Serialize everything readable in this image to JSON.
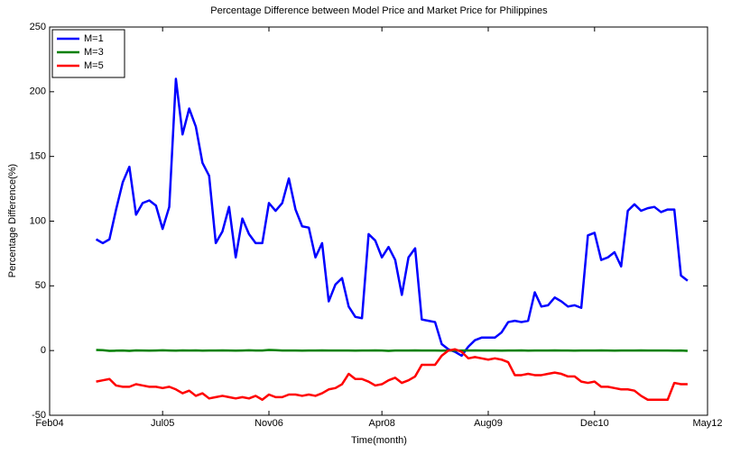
{
  "chart_data": {
    "type": "line",
    "title": "Percentage Difference between Model Price and Market Price for Philippines",
    "xlabel": "Time(month)",
    "ylabel": "Percentage Difference(%)",
    "x": [
      "2004-09",
      "2004-10",
      "2004-11",
      "2004-12",
      "2005-01",
      "2005-02",
      "2005-03",
      "2005-04",
      "2005-05",
      "2005-06",
      "2005-07",
      "2005-08",
      "2005-09",
      "2005-10",
      "2005-11",
      "2005-12",
      "2006-01",
      "2006-02",
      "2006-03",
      "2006-04",
      "2006-05",
      "2006-06",
      "2006-07",
      "2006-08",
      "2006-09",
      "2006-10",
      "2006-11",
      "2006-12",
      "2007-01",
      "2007-02",
      "2007-03",
      "2007-04",
      "2007-05",
      "2007-06",
      "2007-07",
      "2007-08",
      "2007-09",
      "2007-10",
      "2007-11",
      "2007-12",
      "2008-01",
      "2008-02",
      "2008-03",
      "2008-04",
      "2008-05",
      "2008-06",
      "2008-07",
      "2008-08",
      "2008-09",
      "2008-10",
      "2008-11",
      "2008-12",
      "2009-01",
      "2009-02",
      "2009-03",
      "2009-04",
      "2009-05",
      "2009-06",
      "2009-07",
      "2009-08",
      "2009-09",
      "2009-10",
      "2009-11",
      "2009-12",
      "2010-01",
      "2010-02",
      "2010-03",
      "2010-04",
      "2010-05",
      "2010-06",
      "2010-07",
      "2010-08",
      "2010-09",
      "2010-10",
      "2010-11",
      "2010-12",
      "2011-01",
      "2011-02",
      "2011-03",
      "2011-04",
      "2011-05",
      "2011-06",
      "2011-07",
      "2011-08",
      "2011-09",
      "2011-10",
      "2011-11",
      "2011-12",
      "2012-01",
      "2012-02"
    ],
    "series": [
      {
        "name": "M=1",
        "color": "#0000ff",
        "values": [
          86,
          83,
          86,
          109,
          130,
          142,
          105,
          114,
          116,
          112,
          94,
          111,
          210,
          167,
          187,
          173,
          145,
          135,
          83,
          92,
          111,
          72,
          102,
          90,
          83,
          83,
          114,
          108,
          114,
          133,
          109,
          96,
          95,
          72,
          83,
          38,
          51,
          56,
          34,
          26,
          25,
          90,
          85,
          72,
          80,
          70,
          43,
          72,
          79,
          24,
          23,
          22,
          5,
          1,
          -1,
          -4,
          3,
          8,
          10,
          10,
          10,
          14,
          22,
          23,
          22,
          23,
          45,
          34,
          35,
          41,
          38,
          34,
          35,
          33,
          89,
          91,
          70,
          72,
          76,
          65,
          108,
          113,
          108,
          110,
          111,
          107,
          109,
          109,
          58,
          54
        ]
      },
      {
        "name": "M=3",
        "color": "#008000",
        "values": [
          0.5,
          0.3,
          -0.2,
          -0.1,
          0,
          -0.2,
          0.1,
          0,
          -0.1,
          0,
          0.2,
          0,
          -0.1,
          0.1,
          0,
          0.1,
          -0.1,
          0,
          0,
          0.1,
          0,
          -0.1,
          0,
          0.2,
          0,
          0,
          0.5,
          0.3,
          0,
          0,
          0,
          -0.1,
          0,
          0,
          0.1,
          0,
          0,
          0,
          0,
          -0.1,
          0,
          0,
          0.1,
          0,
          -0.2,
          0,
          0,
          0,
          0.1,
          0,
          0,
          0,
          -0.1,
          0,
          0,
          0,
          0,
          0.1,
          0,
          0,
          0,
          -0.1,
          0,
          0,
          0.1,
          -0.1,
          0,
          0,
          0,
          0.1,
          0,
          0,
          -0.1,
          0,
          0,
          0,
          0.1,
          0,
          -0.1,
          0,
          0,
          0,
          0.1,
          0,
          0,
          0,
          0,
          -0.1,
          0,
          -0.2
        ]
      },
      {
        "name": "M=5",
        "color": "#ff0000",
        "values": [
          -24,
          -23,
          -22,
          -27,
          -28,
          -28,
          -26,
          -27,
          -28,
          -28,
          -29,
          -28,
          -30,
          -33,
          -31,
          -35,
          -33,
          -37,
          -36,
          -35,
          -36,
          -37,
          -36,
          -37,
          -35,
          -38,
          -34,
          -36,
          -36,
          -34,
          -34,
          -35,
          -34,
          -35,
          -33,
          -30,
          -29,
          -26,
          -18,
          -22,
          -22,
          -24,
          -27,
          -26,
          -23,
          -21,
          -25,
          -23,
          -20,
          -11,
          -11,
          -11,
          -4,
          0,
          1,
          -1,
          -6,
          -5,
          -6,
          -7,
          -6,
          -7,
          -9,
          -19,
          -19,
          -18,
          -19,
          -19,
          -18,
          -17,
          -18,
          -20,
          -20,
          -24,
          -25,
          -24,
          -28,
          -28,
          -29,
          -30,
          -30,
          -31,
          -35,
          -38,
          -38,
          -38,
          -38,
          -25,
          -26,
          -26
        ]
      }
    ],
    "xlim": [
      "2004-02",
      "2012-05"
    ],
    "xticks": [
      {
        "value": "2004-02",
        "label": "Feb04"
      },
      {
        "value": "2005-07",
        "label": "Jul05"
      },
      {
        "value": "2006-11",
        "label": "Nov06"
      },
      {
        "value": "2008-04",
        "label": "Apr08"
      },
      {
        "value": "2009-08",
        "label": "Aug09"
      },
      {
        "value": "2010-12",
        "label": "Dec10"
      },
      {
        "value": "2012-05",
        "label": "May12"
      }
    ],
    "ylim": [
      -50,
      250
    ],
    "yticks": [
      -50,
      0,
      50,
      100,
      150,
      200,
      250
    ],
    "grid": false,
    "legend": "northwest"
  }
}
